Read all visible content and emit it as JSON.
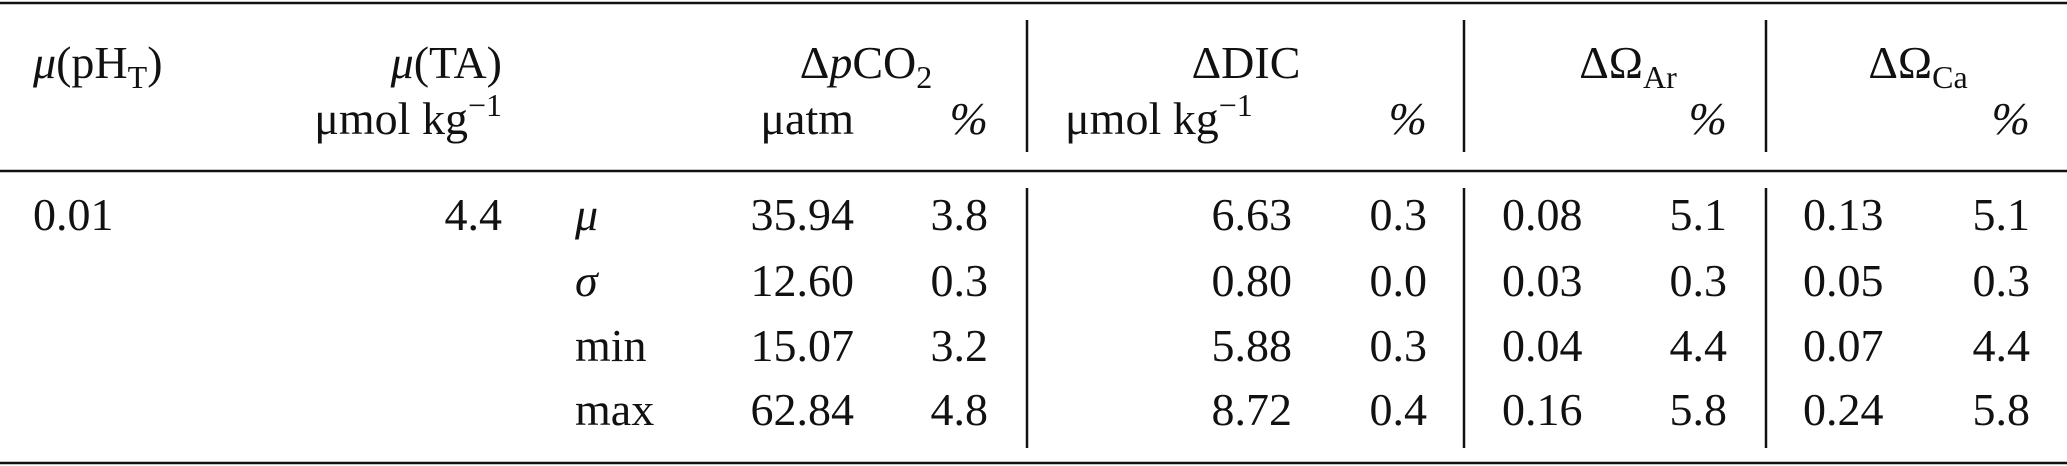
{
  "table": {
    "header": {
      "ph": {
        "mu": "μ",
        "text": "(pH",
        "sub": "T",
        "close": ")"
      },
      "ta": {
        "mu": "μ",
        "text": "(TA)",
        "unit": "μmol kg",
        "unit_sup": "−1"
      },
      "pco2": {
        "delta": "Δ",
        "p": "p",
        "text": "CO",
        "sub": "2",
        "unit": "μatm",
        "pct": "%"
      },
      "dic": {
        "text": "ΔDIC",
        "unit": "μmol kg",
        "unit_sup": "−1",
        "pct": "%"
      },
      "ar": {
        "text": "ΔΩ",
        "sub": "Ar",
        "pct": "%"
      },
      "ca": {
        "text": "ΔΩ",
        "sub": "Ca",
        "pct": "%"
      }
    },
    "rows": [
      {
        "ph": "0.01",
        "ta": "4.4",
        "stat": "μ",
        "values": [
          "35.94",
          "3.8",
          "6.63",
          "0.3",
          "0.08",
          "5.1",
          "0.13",
          "5.1"
        ]
      },
      {
        "stat": "σ",
        "values": [
          "12.60",
          "0.3",
          "0.80",
          "0.0",
          "0.03",
          "0.3",
          "0.05",
          "0.3"
        ]
      },
      {
        "stat": "min",
        "values": [
          "15.07",
          "3.2",
          "5.88",
          "0.3",
          "0.04",
          "4.4",
          "0.07",
          "4.4"
        ]
      },
      {
        "stat": "max",
        "values": [
          "62.84",
          "4.8",
          "8.72",
          "0.4",
          "0.16",
          "5.8",
          "0.24",
          "5.8"
        ]
      }
    ]
  }
}
